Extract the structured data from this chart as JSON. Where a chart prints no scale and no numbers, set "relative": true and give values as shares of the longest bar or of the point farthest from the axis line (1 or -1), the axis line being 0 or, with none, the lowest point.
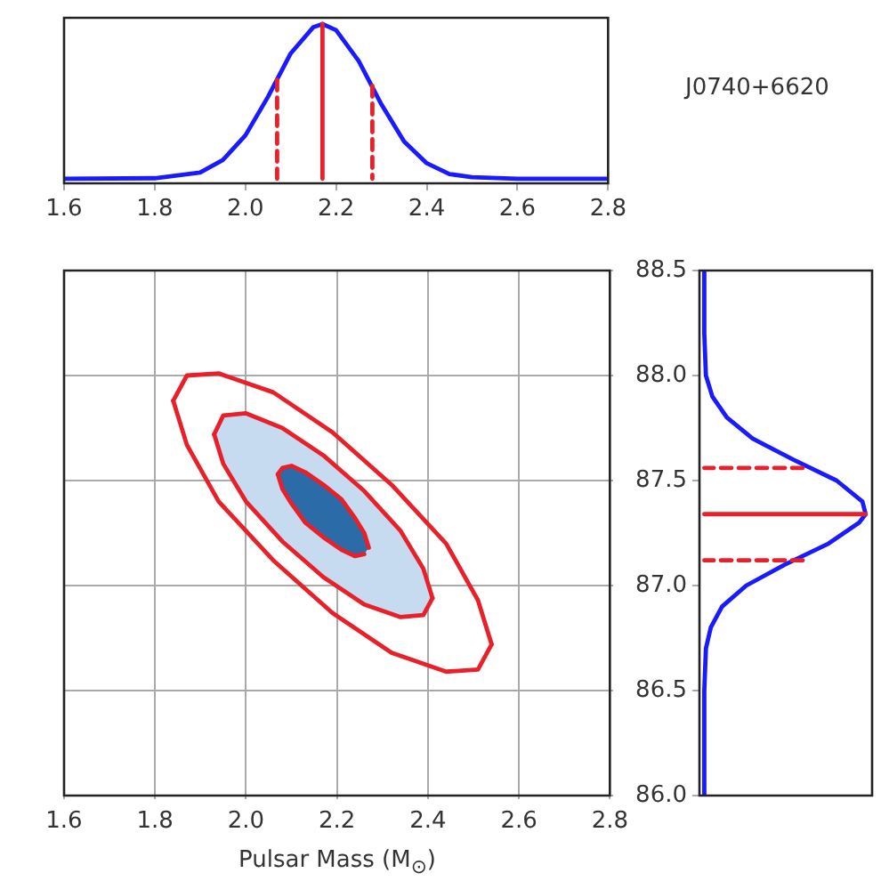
{
  "chart_data": [
    {
      "type": "line",
      "relative": true,
      "marker": "none",
      "tick_labels": "x",
      "annotations": [
        "J0740+6620"
      ],
      "xlim": [
        1.6,
        2.8
      ],
      "xticks": [
        1.6,
        1.8,
        {
          "value": 2,
          "label": "2.0"
        },
        2.2,
        2.4,
        2.6,
        2.8
      ],
      "series": [
        {
          "color": "#1a1aff",
          "x": [
            1.6,
            1.8,
            1.9,
            1.95,
            2.0,
            2.05,
            2.1,
            2.15,
            2.17,
            2.2,
            2.25,
            2.3,
            2.35,
            2.4,
            2.45,
            2.5,
            2.6,
            2.8
          ],
          "values": [
            0,
            0.003,
            0.04,
            0.12,
            0.28,
            0.53,
            0.81,
            0.98,
            1,
            0.96,
            0.76,
            0.48,
            0.24,
            0.1,
            0.03,
            0.01,
            0,
            0
          ]
        },
        {
          "color": "#e8202a",
          "line_style": "solid",
          "x": [
            2.17,
            2.17
          ],
          "values": [
            0,
            1
          ]
        },
        {
          "color": "#e8202a",
          "line_style": "dashed",
          "x": [
            2.07,
            2.07
          ],
          "values": [
            0.64,
            0
          ]
        },
        {
          "color": "#e8202a",
          "line_style": "dashed",
          "x": [
            2.28,
            2.28
          ],
          "values": [
            0.6,
            0
          ]
        }
      ]
    },
    {
      "type": "line",
      "marker": "none",
      "grid": true,
      "tick_labels": "x",
      "xlabel": "Pulsar Mass (M$_{⊙}$)",
      "xlim": [
        1.6,
        2.8
      ],
      "xticks": [
        1.6,
        1.8,
        {
          "value": 2,
          "label": "2.0"
        },
        2.2,
        2.4,
        2.6,
        2.8
      ],
      "ylim": [
        86.0,
        88.5
      ],
      "yticks": [
        86,
        86.5,
        87,
        87.5,
        88,
        88.5
      ],
      "series": [
        {
          "type": "area",
          "color": "#c6dbef",
          "x": [
            2.41,
            2.39,
            2.34,
            2.26,
            2.17,
            2.08,
            2.0,
            1.95,
            1.93,
            1.95,
            2.0,
            2.08,
            2.17,
            2.26,
            2.34,
            2.39,
            2.41
          ],
          "values": [
            86.94,
            87.08,
            87.26,
            87.45,
            87.62,
            87.75,
            87.82,
            87.81,
            87.72,
            87.58,
            87.4,
            87.21,
            87.04,
            86.91,
            86.85,
            86.86,
            86.94
          ]
        },
        {
          "type": "area",
          "color": "#2b6ca8",
          "x": [
            2.27,
            2.26,
            2.24,
            2.21,
            2.17,
            2.13,
            2.1,
            2.08,
            2.07,
            2.08,
            2.1,
            2.13,
            2.17,
            2.21,
            2.24,
            2.26,
            2.27
          ],
          "values": [
            87.18,
            87.25,
            87.32,
            87.41,
            87.48,
            87.54,
            87.57,
            87.56,
            87.53,
            87.46,
            87.39,
            87.3,
            87.23,
            87.17,
            87.14,
            87.15,
            87.18
          ]
        },
        {
          "color": "#e8202a",
          "x": [
            1.84,
            1.87,
            1.94,
            2.06,
            2.19,
            2.32,
            2.44,
            2.51,
            2.54
          ],
          "values": [
            87.88,
            88.0,
            88.01,
            87.92,
            87.73,
            87.48,
            87.2,
            86.93,
            86.72
          ]
        },
        {
          "color": "#e8202a",
          "x": [
            1.84,
            1.87,
            1.94,
            2.06,
            2.19,
            2.32,
            2.44,
            2.51,
            2.54
          ],
          "values": [
            87.88,
            87.67,
            87.4,
            87.12,
            86.87,
            86.68,
            86.59,
            86.6,
            86.72
          ]
        },
        {
          "color": "#e8202a",
          "x": [
            1.93,
            1.95,
            2.0,
            2.08,
            2.17,
            2.26,
            2.34,
            2.39,
            2.41
          ],
          "values": [
            87.72,
            87.81,
            87.82,
            87.75,
            87.62,
            87.45,
            87.26,
            87.08,
            86.94
          ]
        },
        {
          "color": "#e8202a",
          "x": [
            1.93,
            1.95,
            2.0,
            2.08,
            2.17,
            2.26,
            2.34,
            2.39,
            2.41
          ],
          "values": [
            87.72,
            87.58,
            87.4,
            87.21,
            87.04,
            86.91,
            86.85,
            86.86,
            86.94
          ]
        },
        {
          "color": "#e8202a",
          "x": [
            2.07,
            2.08,
            2.1,
            2.13,
            2.17,
            2.21,
            2.24,
            2.26,
            2.27
          ],
          "values": [
            87.53,
            87.56,
            87.57,
            87.54,
            87.48,
            87.41,
            87.32,
            87.25,
            87.18
          ]
        },
        {
          "color": "#e8202a",
          "x": [
            2.07,
            2.08,
            2.1,
            2.13,
            2.17,
            2.21,
            2.24,
            2.26
          ],
          "values": [
            87.53,
            87.46,
            87.39,
            87.3,
            87.23,
            87.17,
            87.14,
            87.15
          ]
        }
      ]
    },
    {
      "type": "line",
      "relative": true,
      "orientation": "horizontal",
      "marker": "none",
      "tick_labels": "y",
      "ylim": [
        86.0,
        88.5
      ],
      "yticks": [
        {
          "value": 86,
          "label": "86.0"
        },
        86.5,
        {
          "value": 87,
          "label": "87.0"
        },
        87.5,
        {
          "value": 88,
          "label": "88.0"
        },
        88.5
      ],
      "series": [
        {
          "color": "#1a1aff",
          "values": [
            0,
            0,
            0.01,
            0.04,
            0.11,
            0.26,
            0.5,
            0.77,
            0.96,
            1,
            0.98,
            0.82,
            0.55,
            0.3,
            0.14,
            0.05,
            0.01,
            0,
            0
          ],
          "x": [
            86.0,
            86.5,
            86.7,
            86.8,
            86.9,
            87.0,
            87.1,
            87.2,
            87.3,
            87.34,
            87.4,
            87.5,
            87.6,
            87.7,
            87.8,
            87.9,
            88.0,
            88.2,
            88.5
          ]
        },
        {
          "color": "#e8202a",
          "line_style": "solid",
          "values": [
            0,
            1
          ],
          "x": [
            87.34,
            87.34
          ]
        },
        {
          "color": "#e8202a",
          "line_style": "dashed",
          "values": [
            0.61,
            0
          ],
          "x": [
            87.12,
            87.12
          ]
        },
        {
          "color": "#e8202a",
          "line_style": "dashed",
          "values": [
            0.61,
            0
          ],
          "x": [
            87.56,
            87.56
          ]
        }
      ]
    }
  ]
}
